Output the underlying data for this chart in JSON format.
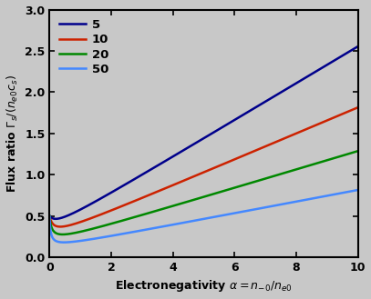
{
  "xlabel": "Electronegativity $\\alpha = n_{-0} / n_{e0}$",
  "ylabel": "Flux ratio $\\Gamma_s / (n_{e0} c_s)$",
  "xlim": [
    0,
    10
  ],
  "ylim": [
    0.0,
    3.0
  ],
  "xticks": [
    0,
    2,
    4,
    6,
    8,
    10
  ],
  "yticks": [
    0.0,
    0.5,
    1.0,
    1.5,
    2.0,
    2.5,
    3.0
  ],
  "gamma_values": [
    5,
    10,
    20,
    50
  ],
  "gamma_colors": [
    "#00008B",
    "#CC2200",
    "#008800",
    "#4488FF"
  ],
  "gamma_labels": [
    "5",
    "10",
    "20",
    "50"
  ],
  "background_color": "#C8C8C8",
  "n_points": 500
}
